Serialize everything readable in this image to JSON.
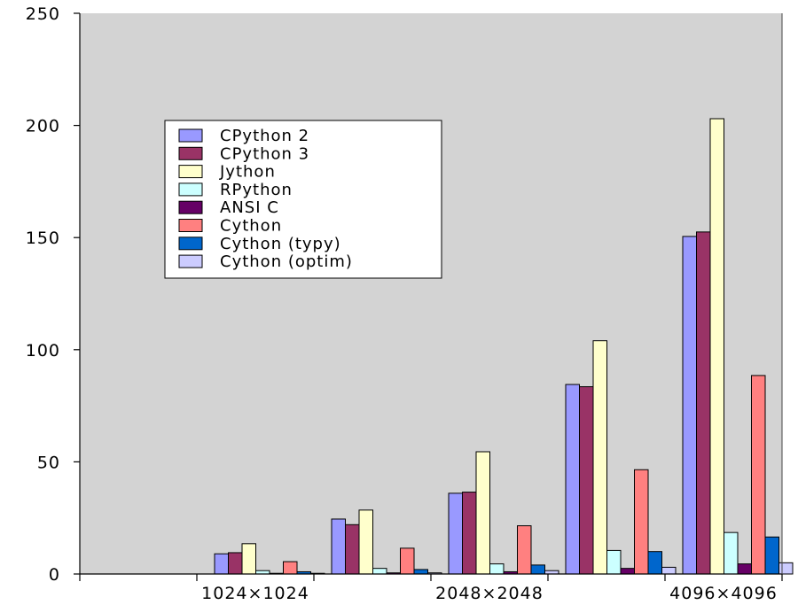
{
  "chart_data": {
    "type": "bar",
    "title": "",
    "xlabel": "",
    "ylabel": "",
    "ylim": [
      0,
      250
    ],
    "yticks": [
      0,
      50,
      100,
      150,
      200,
      250
    ],
    "categories": [
      "",
      "1024×1024",
      "",
      "2048×2048",
      "",
      "4096×4096"
    ],
    "x_tick_labels": [
      "1024×1024",
      "2048×2048",
      "4096×4096"
    ],
    "grid": false,
    "legend_position": "upper-left",
    "background_color": "#d3d3d3",
    "series": [
      {
        "name": "CPython 2",
        "color": "#9999ff",
        "values": [
          0,
          9,
          24.5,
          36,
          84.5,
          150.5
        ]
      },
      {
        "name": "CPython 3",
        "color": "#993366",
        "values": [
          0,
          9.5,
          22,
          36.5,
          83.5,
          152.5
        ]
      },
      {
        "name": "Jython",
        "color": "#ffffcc",
        "values": [
          0,
          13.5,
          28.5,
          54.5,
          104,
          203
        ]
      },
      {
        "name": "RPython",
        "color": "#ccffff",
        "values": [
          0,
          1.5,
          2.5,
          4.5,
          10.5,
          18.5
        ]
      },
      {
        "name": "ANSI C",
        "color": "#660066",
        "values": [
          0,
          0.3,
          0.5,
          1.0,
          2.5,
          4.5
        ]
      },
      {
        "name": "Cython",
        "color": "#ff8080",
        "values": [
          0,
          5.5,
          11.5,
          21.5,
          46.5,
          88.5
        ]
      },
      {
        "name": "Cython (typy)",
        "color": "#0066cc",
        "values": [
          0,
          1.0,
          2.0,
          4.0,
          10.0,
          16.5
        ]
      },
      {
        "name": "Cython (optim)",
        "color": "#ccccff",
        "values": [
          0,
          0.3,
          0.5,
          1.5,
          3.0,
          5.0
        ]
      }
    ]
  }
}
